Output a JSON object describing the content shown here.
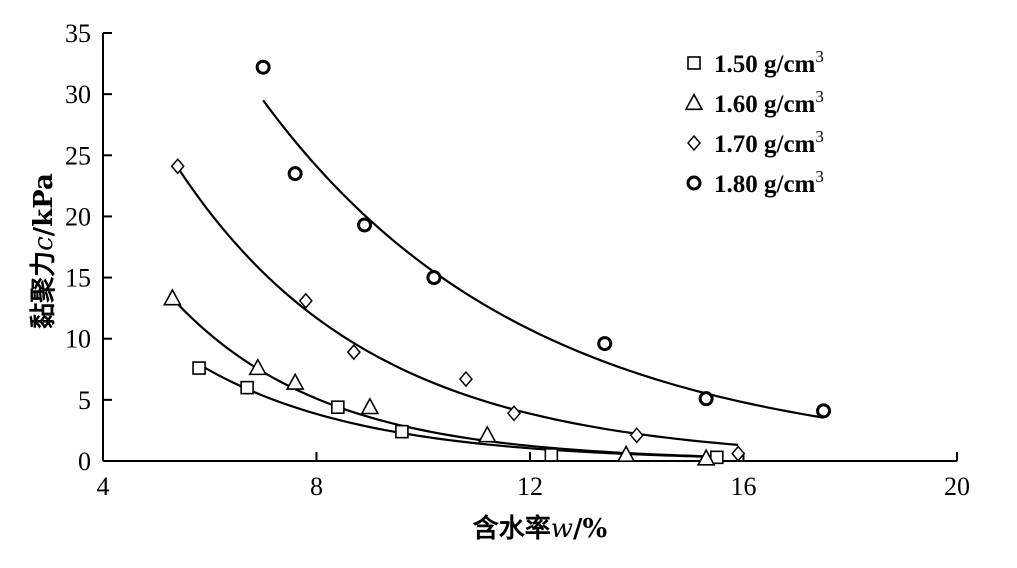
{
  "chart_data": {
    "type": "scatter",
    "xlabel_prefix": "含水率",
    "xlabel_var": "w",
    "xlabel_suffix": "/%",
    "ylabel_prefix": "黏聚力",
    "ylabel_var": "c",
    "ylabel_suffix": "/kPa",
    "xlim": [
      4,
      20
    ],
    "ylim": [
      0,
      35
    ],
    "xticks": [
      4,
      8,
      12,
      16,
      20
    ],
    "yticks": [
      0,
      5,
      10,
      15,
      20,
      25,
      30,
      35
    ],
    "grid": false,
    "legend_position": "top-right",
    "series": [
      {
        "name": "1.50 g/cm",
        "name_sup": "3",
        "marker": "square",
        "points": [
          [
            5.8,
            7.6
          ],
          [
            6.7,
            6.0
          ],
          [
            8.4,
            4.4
          ],
          [
            9.6,
            2.4
          ],
          [
            12.4,
            0.5
          ],
          [
            15.5,
            0.3
          ]
        ],
        "fit": {
          "x0": 5.8,
          "y0": 7.9,
          "k": 0.3268,
          "xmin": 5.8,
          "xmax": 15.4
        }
      },
      {
        "name": "1.60 g/cm",
        "name_sup": "3",
        "marker": "triangle",
        "points": [
          [
            5.3,
            13.3
          ],
          [
            6.9,
            7.6
          ],
          [
            7.6,
            6.4
          ],
          [
            9.0,
            4.4
          ],
          [
            11.2,
            2.1
          ],
          [
            13.8,
            0.5
          ],
          [
            15.3,
            0.2
          ]
        ],
        "fit": {
          "x0": 5.3,
          "y0": 13.3,
          "k": 0.3549,
          "xmin": 5.3,
          "xmax": 15.3
        }
      },
      {
        "name": "1.70 g/cm",
        "name_sup": "3",
        "marker": "diamond",
        "points": [
          [
            5.4,
            24.1
          ],
          [
            7.8,
            13.1
          ],
          [
            8.7,
            8.9
          ],
          [
            10.8,
            6.7
          ],
          [
            11.7,
            3.9
          ],
          [
            14.0,
            2.1
          ],
          [
            15.9,
            0.6
          ]
        ],
        "fit": {
          "x0": 5.4,
          "y0": 24.0,
          "k": 0.2764,
          "xmin": 5.4,
          "xmax": 15.9
        }
      },
      {
        "name": "1.80 g/cm",
        "name_sup": "3",
        "marker": "circle",
        "points": [
          [
            7.0,
            32.2
          ],
          [
            7.6,
            23.5
          ],
          [
            8.9,
            19.3
          ],
          [
            10.2,
            15.0
          ],
          [
            13.4,
            9.6
          ],
          [
            15.3,
            5.1
          ],
          [
            17.5,
            4.1
          ]
        ],
        "fit": {
          "x0": 7.0,
          "y0": 29.5,
          "k": 0.2018,
          "xmin": 7.0,
          "xmax": 17.5
        }
      }
    ]
  }
}
